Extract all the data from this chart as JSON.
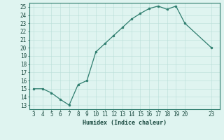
{
  "x": [
    3,
    4,
    5,
    6,
    7,
    8,
    9,
    10,
    11,
    12,
    13,
    14,
    15,
    16,
    17,
    18,
    19,
    20,
    23
  ],
  "y": [
    15,
    15,
    14.5,
    13.7,
    13,
    15.5,
    16,
    19.5,
    20.5,
    21.5,
    22.5,
    23.5,
    24.2,
    24.8,
    25.1,
    24.7,
    25.1,
    23,
    20
  ],
  "xlabel": "Humidex (Indice chaleur)",
  "xticks": [
    3,
    4,
    5,
    6,
    7,
    8,
    9,
    10,
    11,
    12,
    13,
    14,
    15,
    16,
    17,
    18,
    19,
    20,
    23
  ],
  "yticks": [
    13,
    14,
    15,
    16,
    17,
    18,
    19,
    20,
    21,
    22,
    23,
    24,
    25
  ],
  "ylim": [
    12.5,
    25.5
  ],
  "xlim": [
    2.5,
    23.9
  ],
  "line_color": "#2e7d6e",
  "bg_color": "#dff4f0",
  "grid_color": "#b8ddd8",
  "tick_color": "#1a4a40",
  "border_color": "#2e7d6e",
  "label_fontsize": 6.0,
  "tick_fontsize": 5.5
}
